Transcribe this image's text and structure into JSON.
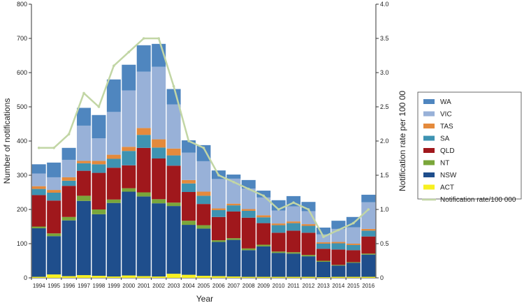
{
  "chart_data": {
    "type": "bar",
    "stacked": true,
    "xlabel": "Year",
    "ylabel": "Number of notifications",
    "y2label": "Notification rate per 100 00",
    "ylim": [
      0,
      800
    ],
    "y2lim": [
      0,
      4.0
    ],
    "yticks": [
      "0",
      "100",
      "200",
      "300",
      "400",
      "500",
      "600",
      "700",
      "800"
    ],
    "y2ticks": [
      "0",
      "0.5",
      "1.0",
      "1.5",
      "2.0",
      "2.5",
      "3.0",
      "3.5",
      "4.0"
    ],
    "grid": false,
    "legend_position": "right",
    "categories": [
      "1994",
      "1995",
      "1996",
      "1997",
      "1998",
      "1999",
      "2000",
      "2001",
      "2002",
      "2003",
      "2004",
      "2005",
      "2006",
      "2007",
      "2008",
      "2009",
      "2010",
      "2011",
      "2012",
      "2013",
      "2014",
      "2015",
      "2016"
    ],
    "series": [
      {
        "name": "ACT",
        "color": "#f7f021",
        "values": [
          3,
          10,
          5,
          8,
          6,
          4,
          7,
          5,
          4,
          12,
          9,
          6,
          5,
          4,
          3,
          3,
          3,
          3,
          3,
          2,
          3,
          3,
          3
        ]
      },
      {
        "name": "NSW",
        "color": "#1f4e8c",
        "values": [
          142,
          112,
          163,
          217,
          180,
          215,
          245,
          233,
          214,
          198,
          146,
          138,
          100,
          107,
          78,
          89,
          70,
          68,
          60,
          45,
          33,
          41,
          65
        ]
      },
      {
        "name": "NT",
        "color": "#7aa63a",
        "values": [
          5,
          8,
          10,
          15,
          14,
          10,
          10,
          12,
          12,
          10,
          12,
          10,
          5,
          5,
          5,
          5,
          4,
          4,
          4,
          3,
          2,
          2,
          3
        ]
      },
      {
        "name": "QLD",
        "color": "#a0181c",
        "values": [
          92,
          96,
          91,
          73,
          107,
          93,
          67,
          130,
          119,
          108,
          84,
          62,
          68,
          78,
          90,
          63,
          55,
          63,
          65,
          35,
          45,
          35,
          50
        ]
      },
      {
        "name": "SA",
        "color": "#3e93b2",
        "values": [
          18,
          23,
          15,
          22,
          25,
          26,
          42,
          38,
          32,
          30,
          25,
          24,
          20,
          18,
          20,
          17,
          22,
          22,
          20,
          15,
          18,
          15,
          17
        ]
      },
      {
        "name": "TAS",
        "color": "#e48a3c",
        "values": [
          8,
          8,
          10,
          7,
          10,
          12,
          12,
          20,
          24,
          20,
          10,
          12,
          5,
          5,
          5,
          6,
          5,
          5,
          5,
          4,
          4,
          4,
          5
        ]
      },
      {
        "name": "VIC",
        "color": "#98b1d8",
        "values": [
          37,
          37,
          51,
          103,
          66,
          125,
          165,
          165,
          212,
          129,
          80,
          89,
          86,
          73,
          60,
          52,
          38,
          44,
          38,
          23,
          38,
          48,
          78
        ]
      },
      {
        "name": "WA",
        "color": "#4f86bf",
        "values": [
          27,
          43,
          35,
          52,
          68,
          95,
          75,
          77,
          67,
          45,
          36,
          47,
          25,
          12,
          25,
          20,
          30,
          30,
          27,
          20,
          24,
          30,
          22
        ]
      }
    ],
    "line_series": {
      "name": "Notification rate/100 000",
      "color": "#c2d6a5",
      "axis": "right",
      "values": [
        1.9,
        1.9,
        2.1,
        2.7,
        2.5,
        3.1,
        3.3,
        3.5,
        3.5,
        2.8,
        2.0,
        1.9,
        1.5,
        1.4,
        1.3,
        1.2,
        1.0,
        1.1,
        1.0,
        0.6,
        0.7,
        0.8,
        1.0
      ]
    }
  }
}
